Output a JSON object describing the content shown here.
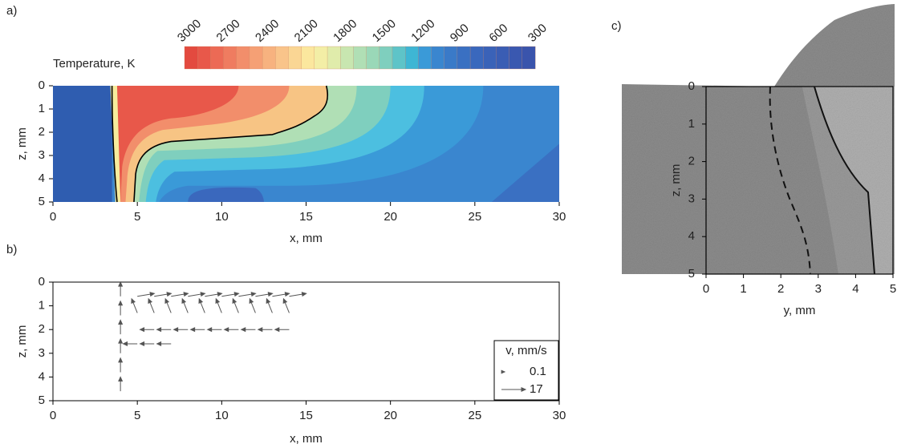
{
  "chart_data": [
    {
      "type": "contour",
      "panel_label": "a)",
      "colorbar_label": "Temperature, K",
      "colorbar_lim": [
        3000,
        300
      ],
      "colorbar_ticks": [
        3000,
        2700,
        2400,
        2100,
        1800,
        1500,
        1200,
        900,
        600,
        300
      ],
      "colorbar_colors": [
        "#e34a3f",
        "#e8584a",
        "#ec6a55",
        "#ef7c60",
        "#f28e6b",
        "#f5a075",
        "#f7b27f",
        "#f9c48a",
        "#fad694",
        "#fbe79e",
        "#f3eea6",
        "#e0ecab",
        "#c8e6b0",
        "#b0dfb5",
        "#9ad8b8",
        "#7fcfbe",
        "#5ec4c8",
        "#3eb6d4",
        "#3a9ad8",
        "#3a86cf",
        "#3a7ac8",
        "#3a70c2",
        "#3a68bd",
        "#3a62b8",
        "#3a5db4",
        "#3a58b0",
        "#3a54ac"
      ],
      "xlabel": "x, mm",
      "ylabel": "z, mm",
      "xlim": [
        0,
        30
      ],
      "ylim": [
        5,
        0
      ],
      "xticks": [
        0,
        5,
        10,
        15,
        20,
        25,
        30
      ],
      "yticks": [
        0,
        1,
        2,
        3,
        4,
        5
      ]
    },
    {
      "type": "quiver",
      "panel_label": "b)",
      "xlabel": "x, mm",
      "ylabel": "z, mm",
      "xlim": [
        0,
        30
      ],
      "ylim": [
        5,
        0
      ],
      "xticks": [
        0,
        5,
        10,
        15,
        20,
        25,
        30
      ],
      "yticks": [
        0,
        1,
        2,
        3,
        4,
        5
      ],
      "legend_title": "v, mm/s",
      "legend_speeds": [
        0.1,
        17
      ],
      "arrow_color": "#555555",
      "vectors": {
        "x": [
          5,
          6,
          7,
          8,
          9,
          10,
          11,
          12,
          13,
          14,
          5,
          6,
          7,
          8,
          9,
          10,
          11,
          12,
          13,
          14,
          6,
          7,
          8,
          9,
          10,
          11,
          12,
          13,
          14,
          4,
          4,
          4,
          4,
          4,
          4,
          5,
          6,
          7
        ],
        "z": [
          0.6,
          0.6,
          0.6,
          0.6,
          0.6,
          0.6,
          0.6,
          0.6,
          0.6,
          0.6,
          1.3,
          1.3,
          1.3,
          1.3,
          1.3,
          1.3,
          1.3,
          1.3,
          1.3,
          1.3,
          2.0,
          2.0,
          2.0,
          2.0,
          2.0,
          2.0,
          2.0,
          2.0,
          2.0,
          0.6,
          1.4,
          2.2,
          3.0,
          3.8,
          4.6,
          2.6,
          2.6,
          2.6
        ],
        "u": [
          12,
          12,
          12,
          12,
          12,
          12,
          12,
          12,
          12,
          12,
          -4,
          -4,
          -4,
          -4,
          -4,
          -4,
          -4,
          -4,
          -4,
          -4,
          -10,
          -10,
          -10,
          -10,
          -10,
          -10,
          -10,
          -10,
          -10,
          0,
          0,
          0,
          0,
          0,
          0,
          -10,
          -10,
          -10
        ],
        "w": [
          -2,
          -2,
          -2,
          -2,
          -2,
          -2,
          -2,
          -2,
          -2,
          -2,
          -10,
          -10,
          -10,
          -10,
          -10,
          -10,
          -10,
          -10,
          -10,
          -10,
          0,
          0,
          0,
          0,
          0,
          0,
          0,
          0,
          0,
          -10,
          -10,
          -10,
          -10,
          -10,
          -10,
          0,
          0,
          0
        ]
      }
    },
    {
      "type": "image",
      "panel_label": "c)",
      "xlabel": "y, mm",
      "ylabel": "z, mm",
      "xlim": [
        0,
        5
      ],
      "ylim": [
        5,
        0
      ],
      "xticks": [
        0,
        1,
        2,
        3,
        4,
        5
      ],
      "yticks": [
        0,
        1,
        2,
        3,
        4,
        5
      ]
    }
  ]
}
